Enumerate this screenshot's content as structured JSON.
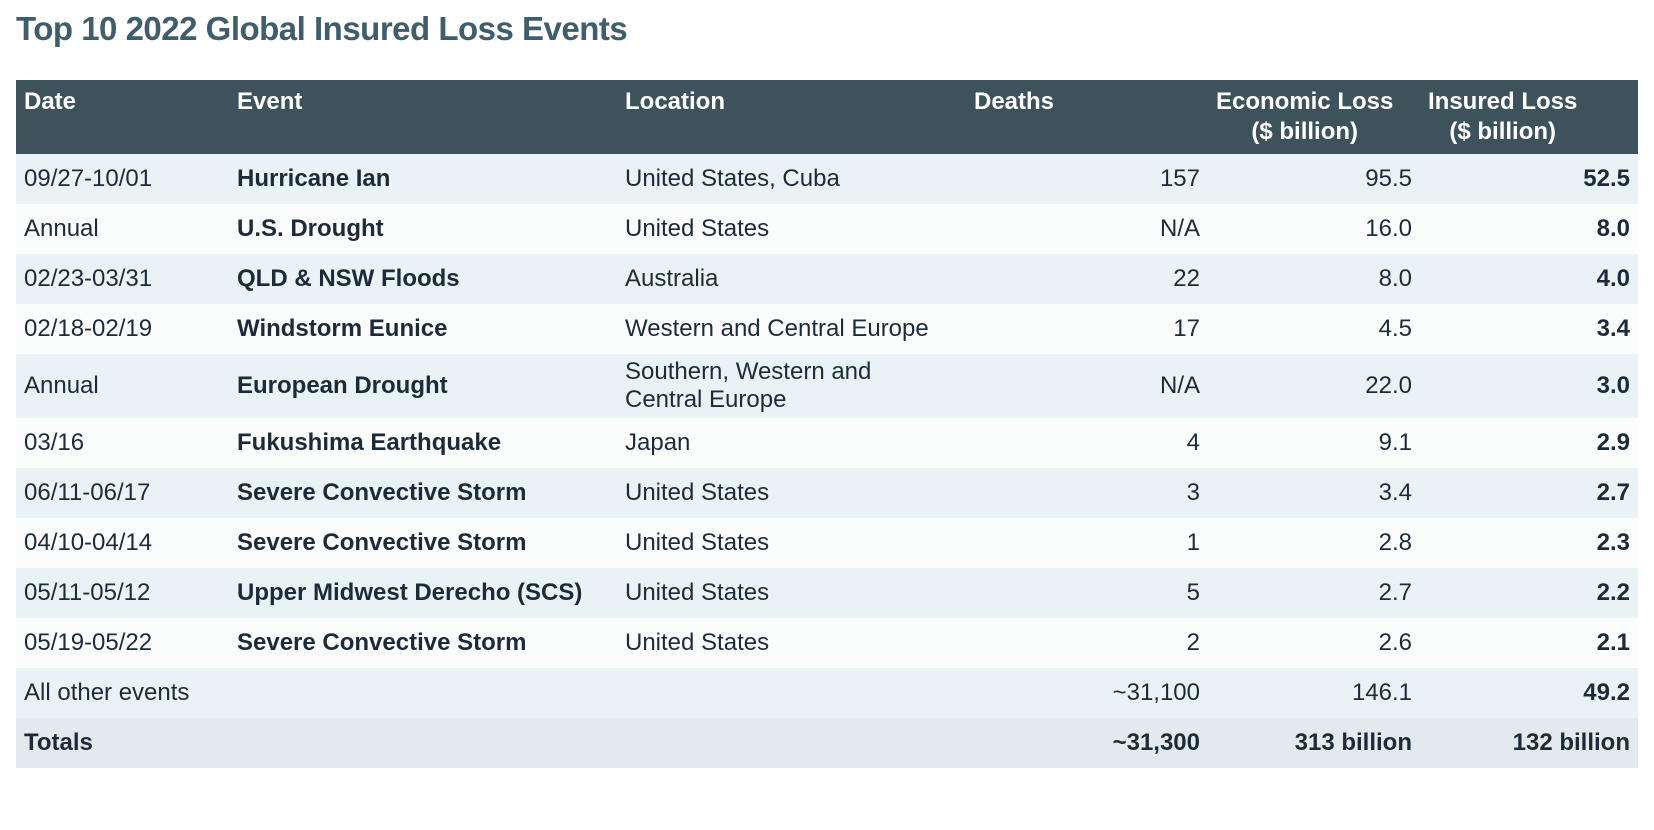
{
  "colors": {
    "title_text": "#3f5d6b",
    "header_bg": "#3e525c",
    "header_text": "#ffffff",
    "row_odd_bg": "#e9f3f5",
    "row_even_bg": "#fbfdfd",
    "totals_row_bg": "#e3eaee",
    "body_text": "#1d2a3a"
  },
  "chart_data": {
    "type": "table",
    "title": "Top 10 2022 Global Insured Loss Events",
    "column_keys": [
      "date",
      "event",
      "location",
      "deaths",
      "economic_loss",
      "insured_loss"
    ],
    "columns": [
      {
        "label": "Date",
        "sublabel": ""
      },
      {
        "label": "Event",
        "sublabel": ""
      },
      {
        "label": "Location",
        "sublabel": ""
      },
      {
        "label": "Deaths",
        "sublabel": ""
      },
      {
        "label": "Economic Loss",
        "sublabel": "($ billion)"
      },
      {
        "label": "Insured Loss",
        "sublabel": "($ billion)"
      }
    ],
    "rows": [
      {
        "cells": [
          "09/27-10/01",
          "Hurricane Ian",
          "United States, Cuba",
          "157",
          "95.5",
          "52.5"
        ]
      },
      {
        "cells": [
          "Annual",
          "U.S. Drought",
          "United States",
          "N/A",
          "16.0",
          "8.0"
        ]
      },
      {
        "cells": [
          "02/23-03/31",
          "QLD & NSW Floods",
          "Australia",
          "22",
          "8.0",
          "4.0"
        ]
      },
      {
        "cells": [
          "02/18-02/19",
          "Windstorm Eunice",
          "Western and Central Europe",
          "17",
          "4.5",
          "3.4"
        ]
      },
      {
        "cells": [
          "Annual",
          "European Drought",
          "Southern, Western and\nCentral Europe",
          "N/A",
          "22.0",
          "3.0"
        ]
      },
      {
        "cells": [
          "03/16",
          "Fukushima Earthquake",
          "Japan",
          "4",
          "9.1",
          "2.9"
        ]
      },
      {
        "cells": [
          "06/11-06/17",
          "Severe Convective Storm",
          "United States",
          "3",
          "3.4",
          "2.7"
        ]
      },
      {
        "cells": [
          "04/10-04/14",
          "Severe Convective Storm",
          "United States",
          "1",
          "2.8",
          "2.3"
        ]
      },
      {
        "cells": [
          "05/11-05/12",
          "Upper Midwest Derecho (SCS)",
          "United States",
          "5",
          "2.7",
          "2.2"
        ]
      },
      {
        "cells": [
          "05/19-05/22",
          "Severe Convective Storm",
          "United States",
          "2",
          "2.6",
          "2.1"
        ]
      }
    ],
    "all_other_events": {
      "label": "All other events",
      "deaths": "~31,100",
      "economic_loss": "146.1",
      "insured_loss": "49.2"
    },
    "totals": {
      "label": "Totals",
      "deaths": "~31,300",
      "economic_loss": "313 billion",
      "insured_loss": "132 billion"
    }
  }
}
